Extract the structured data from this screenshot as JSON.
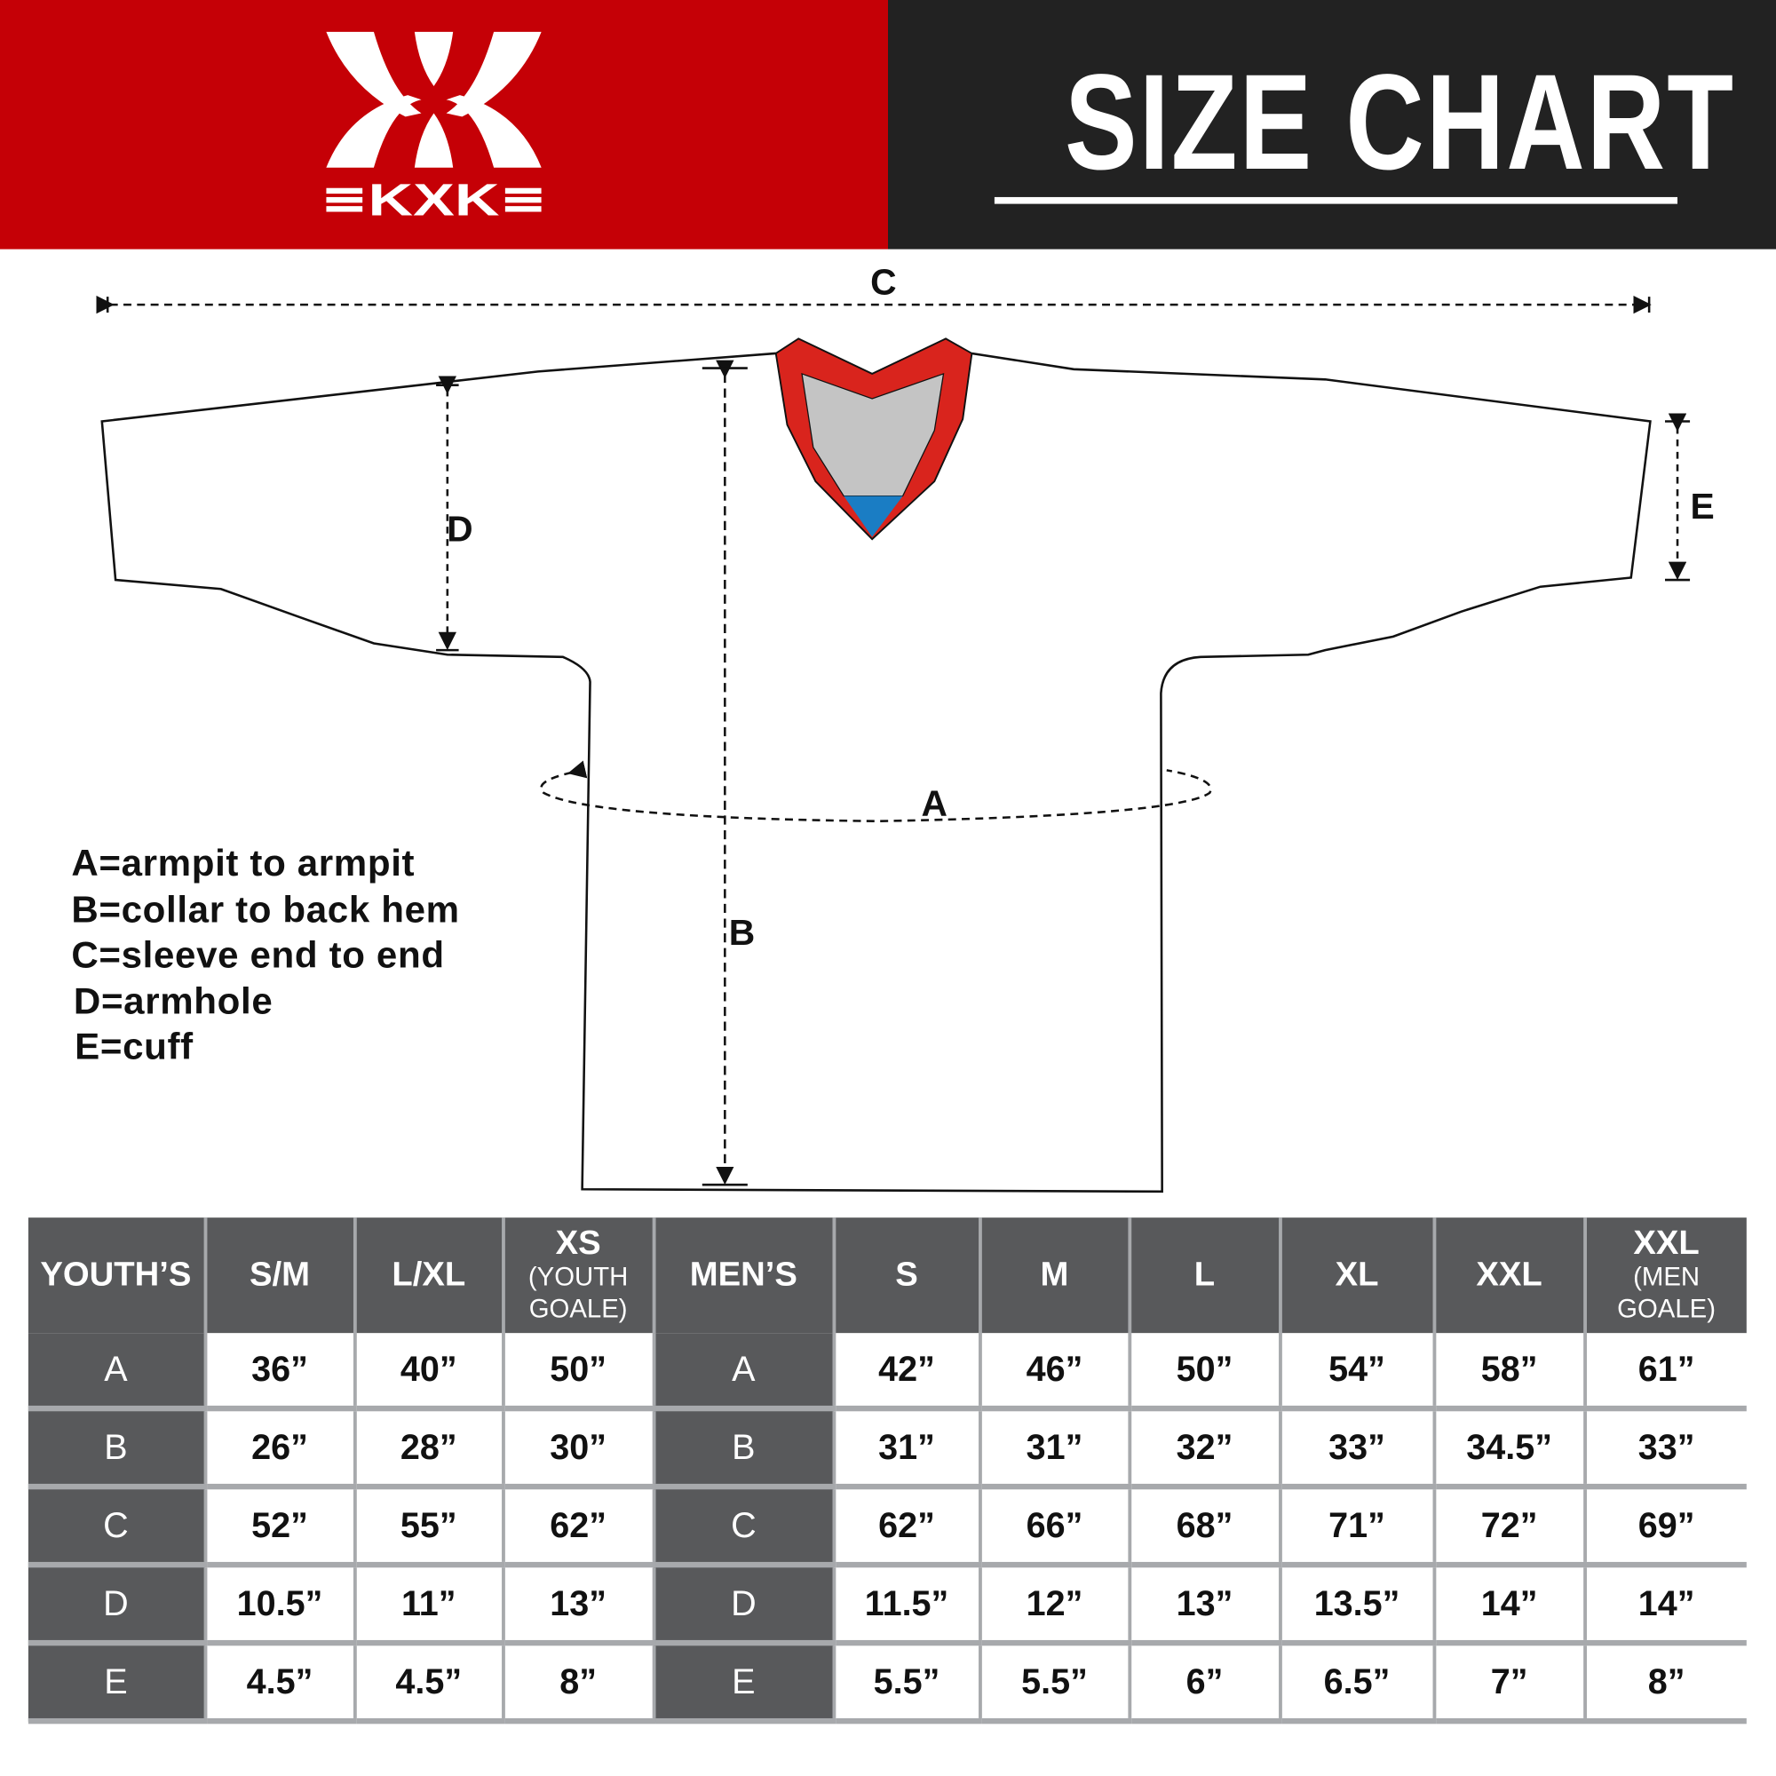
{
  "header": {
    "brand": "KXK",
    "title": "SIZE CHART",
    "colors": {
      "brand_red": "#c50006",
      "dark": "#222222",
      "table_gray": "#58595b",
      "grid": "#a7a9ac",
      "collar_red": "#d9241d",
      "collar_gray": "#c4c4c4",
      "collar_blue": "#1a7dc4"
    }
  },
  "diagram": {
    "labels": {
      "a": "A",
      "b": "B",
      "c": "C",
      "d": "D",
      "e": "E"
    },
    "legend": [
      "A=armpit to armpit",
      "B=collar to back hem",
      "C=sleeve end to end",
      "D=armhole",
      "E=cuff"
    ]
  },
  "table": {
    "columns": [
      {
        "main": "YOUTH’S",
        "sub": ""
      },
      {
        "main": "S/M",
        "sub": ""
      },
      {
        "main": "L/XL",
        "sub": ""
      },
      {
        "main": "XS",
        "sub": "(YOUTH GOALE)"
      },
      {
        "main": "MEN’S",
        "sub": ""
      },
      {
        "main": "S",
        "sub": ""
      },
      {
        "main": "M",
        "sub": ""
      },
      {
        "main": "L",
        "sub": ""
      },
      {
        "main": "XL",
        "sub": ""
      },
      {
        "main": "XXL",
        "sub": ""
      },
      {
        "main": "XXL",
        "sub": "(MEN GOALE)"
      }
    ],
    "rows": [
      {
        "label": "A",
        "youth": [
          "36”",
          "40”",
          "50”"
        ],
        "men": [
          "42”",
          "46”",
          "50”",
          "54”",
          "58”",
          "61”"
        ]
      },
      {
        "label": "B",
        "youth": [
          "26”",
          "28”",
          "30”"
        ],
        "men": [
          "31”",
          "31”",
          "32”",
          "33”",
          "34.5”",
          "33”"
        ]
      },
      {
        "label": "C",
        "youth": [
          "52”",
          "55”",
          "62”"
        ],
        "men": [
          "62”",
          "66”",
          "68”",
          "71”",
          "72”",
          "69”"
        ]
      },
      {
        "label": "D",
        "youth": [
          "10.5”",
          "11”",
          "13”"
        ],
        "men": [
          "11.5”",
          "12”",
          "13”",
          "13.5”",
          "14”",
          "14”"
        ]
      },
      {
        "label": "E",
        "youth": [
          "4.5”",
          "4.5”",
          "8”"
        ],
        "men": [
          "5.5”",
          "5.5”",
          "6”",
          "6.5”",
          "7”",
          "8”"
        ]
      }
    ]
  }
}
